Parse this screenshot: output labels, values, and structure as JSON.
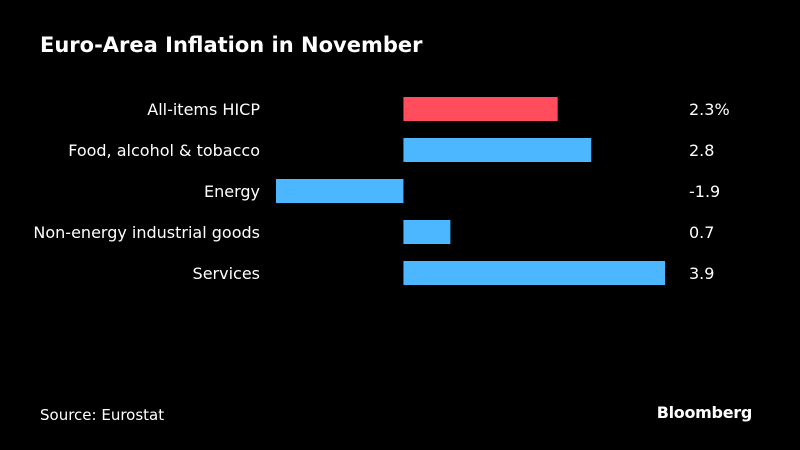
{
  "title": "Euro-Area Inflation in November",
  "source": "Source: Eurostat",
  "brand": "Bloomberg",
  "colors": {
    "background": "#000000",
    "highlight": "#ff4d5e",
    "bar": "#4cb7ff",
    "text": "#ffffff"
  },
  "chart_data": {
    "type": "bar",
    "orientation": "horizontal",
    "categories": [
      "All-items HICP",
      "Food, alcohol & tobacco",
      "Energy",
      "Non-energy industrial goods",
      "Services"
    ],
    "values": [
      2.3,
      2.8,
      -1.9,
      0.7,
      3.9
    ],
    "value_labels": [
      "2.3%",
      "2.8",
      "-1.9",
      "0.7",
      "3.9"
    ],
    "highlight_index": 0,
    "xlim": [
      -1.9,
      3.9
    ],
    "grid": false,
    "legend": "none"
  }
}
